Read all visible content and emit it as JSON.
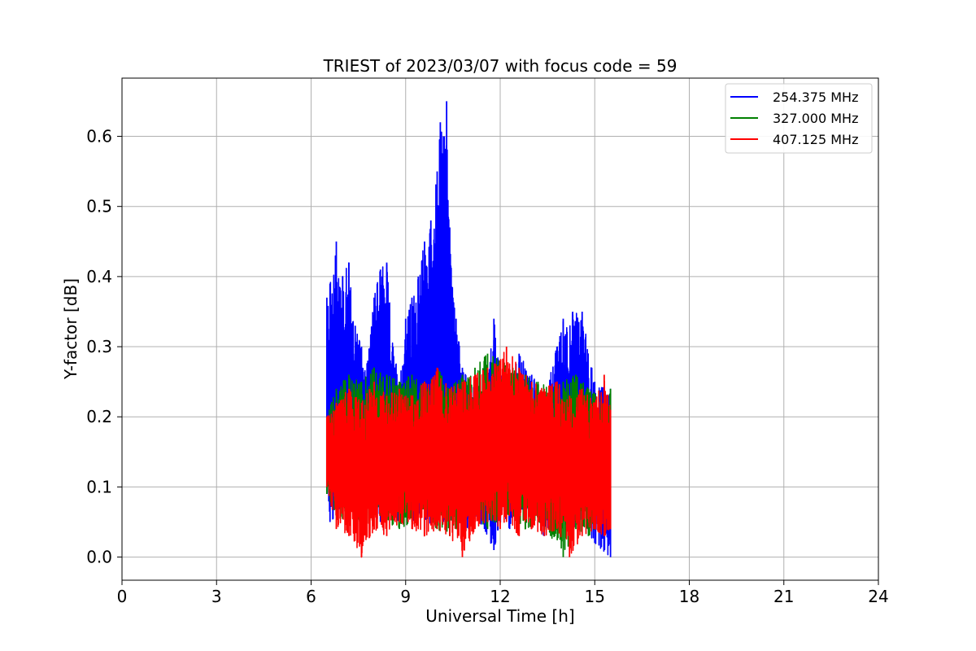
{
  "chart_data": {
    "type": "line",
    "title": "TRIEST of 2023/03/07 with focus code = 59",
    "xlabel": "Universal Time [h]",
    "ylabel": "Y-factor [dB]",
    "xlim": [
      0,
      24
    ],
    "ylim": [
      -0.033,
      0.683
    ],
    "xticks": [
      "0",
      "3",
      "6",
      "9",
      "12",
      "15",
      "18",
      "21",
      "24"
    ],
    "yticks": [
      "0.0",
      "0.1",
      "0.2",
      "0.3",
      "0.4",
      "0.5",
      "0.6"
    ],
    "grid": true,
    "legend_position": "top-right",
    "series": [
      {
        "name": "254.375 MHz",
        "color": "#0000ff",
        "x": [
          6.5,
          6.6,
          6.8,
          7.0,
          7.2,
          7.4,
          7.6,
          7.8,
          8.0,
          8.2,
          8.4,
          8.6,
          8.8,
          9.0,
          9.2,
          9.4,
          9.6,
          9.8,
          10.0,
          10.1,
          10.2,
          10.3,
          10.4,
          10.5,
          10.6,
          10.8,
          11.0,
          11.2,
          11.5,
          11.8,
          12.0,
          12.3,
          12.6,
          13.0,
          13.4,
          13.8,
          14.0,
          14.3,
          14.6,
          15.0,
          15.5
        ],
        "max": [
          0.37,
          0.39,
          0.45,
          0.4,
          0.42,
          0.33,
          0.3,
          0.28,
          0.37,
          0.41,
          0.42,
          0.3,
          0.25,
          0.34,
          0.37,
          0.4,
          0.45,
          0.48,
          0.55,
          0.62,
          0.6,
          0.65,
          0.47,
          0.37,
          0.34,
          0.27,
          0.25,
          0.24,
          0.22,
          0.34,
          0.26,
          0.25,
          0.29,
          0.26,
          0.23,
          0.3,
          0.34,
          0.35,
          0.35,
          0.25,
          0.24
        ],
        "min": [
          0.09,
          0.05,
          0.06,
          0.08,
          0.07,
          0.05,
          0.06,
          0.07,
          0.06,
          0.05,
          0.07,
          0.06,
          0.05,
          0.07,
          0.05,
          0.06,
          0.04,
          0.05,
          0.06,
          0.07,
          0.05,
          0.06,
          0.05,
          0.07,
          0.06,
          0.05,
          0.04,
          0.06,
          0.04,
          0.01,
          0.05,
          0.04,
          0.06,
          0.05,
          0.03,
          0.05,
          0.06,
          0.04,
          0.05,
          0.02,
          0.0
        ]
      },
      {
        "name": "327.000 MHz",
        "color": "#008000",
        "x": [
          6.5,
          6.8,
          7.2,
          7.6,
          8.0,
          8.4,
          8.8,
          9.2,
          9.6,
          10.0,
          10.4,
          10.8,
          11.2,
          11.6,
          12.0,
          12.4,
          12.8,
          13.2,
          13.6,
          14.0,
          14.4,
          14.8,
          15.2,
          15.5
        ],
        "max": [
          0.2,
          0.24,
          0.26,
          0.25,
          0.27,
          0.26,
          0.25,
          0.26,
          0.25,
          0.27,
          0.24,
          0.26,
          0.27,
          0.29,
          0.28,
          0.27,
          0.26,
          0.25,
          0.24,
          0.25,
          0.26,
          0.24,
          0.23,
          0.24
        ],
        "min": [
          0.09,
          0.06,
          0.05,
          0.04,
          0.06,
          0.05,
          0.04,
          0.05,
          0.06,
          0.04,
          0.03,
          0.05,
          0.06,
          0.04,
          0.05,
          0.06,
          0.04,
          0.05,
          0.03,
          0.0,
          0.04,
          0.03,
          0.05,
          0.04
        ]
      },
      {
        "name": "407.125 MHz",
        "color": "#ff0000",
        "x": [
          6.5,
          6.8,
          7.2,
          7.6,
          8.0,
          8.4,
          8.8,
          9.2,
          9.6,
          10.0,
          10.4,
          10.8,
          11.2,
          11.6,
          12.0,
          12.2,
          12.6,
          13.0,
          13.4,
          13.8,
          14.2,
          14.6,
          15.0,
          15.3,
          15.5
        ],
        "max": [
          0.2,
          0.22,
          0.24,
          0.22,
          0.25,
          0.23,
          0.24,
          0.23,
          0.25,
          0.27,
          0.24,
          0.25,
          0.26,
          0.27,
          0.28,
          0.3,
          0.27,
          0.25,
          0.24,
          0.25,
          0.23,
          0.24,
          0.22,
          0.26,
          0.21
        ],
        "min": [
          0.1,
          0.04,
          0.03,
          0.0,
          0.04,
          0.03,
          0.05,
          0.04,
          0.03,
          0.04,
          0.03,
          0.0,
          0.04,
          0.05,
          0.04,
          0.05,
          0.03,
          0.04,
          0.03,
          0.04,
          0.0,
          0.03,
          0.04,
          0.03,
          0.04
        ]
      }
    ]
  }
}
